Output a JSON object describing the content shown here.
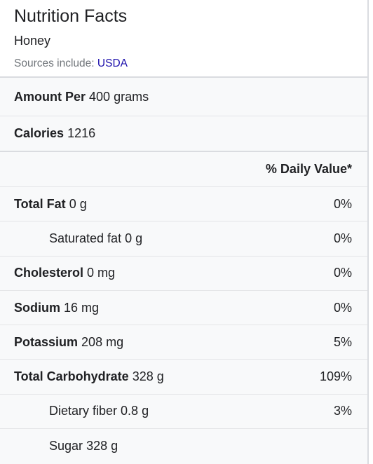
{
  "header": {
    "title": "Nutrition Facts",
    "food": "Honey",
    "sources_prefix": "Sources include: ",
    "sources_link": "USDA"
  },
  "amount": {
    "label": "Amount Per",
    "value": "400 grams"
  },
  "calories": {
    "label": "Calories",
    "value": "1216"
  },
  "daily_value_header": "% Daily Value*",
  "nutrients": [
    {
      "name": "Total Fat",
      "amount": "0 g",
      "dv": "0%",
      "bold": true
    },
    {
      "name": "Saturated fat",
      "amount": "0 g",
      "dv": "0%",
      "bold": false
    },
    {
      "name": "Cholesterol",
      "amount": "0 mg",
      "dv": "0%",
      "bold": true
    },
    {
      "name": "Sodium",
      "amount": "16 mg",
      "dv": "0%",
      "bold": true
    },
    {
      "name": "Potassium",
      "amount": "208 mg",
      "dv": "5%",
      "bold": true
    },
    {
      "name": "Total Carbohydrate",
      "amount": "328 g",
      "dv": "109%",
      "bold": true
    },
    {
      "name": "Dietary fiber",
      "amount": "0.8 g",
      "dv": "3%",
      "bold": false
    },
    {
      "name": "Sugar",
      "amount": "328 g",
      "dv": "",
      "bold": false
    }
  ],
  "colors": {
    "link": "#1a0dab",
    "panel_bg": "#f8f9fa",
    "text": "#202124",
    "muted": "#70757a"
  }
}
